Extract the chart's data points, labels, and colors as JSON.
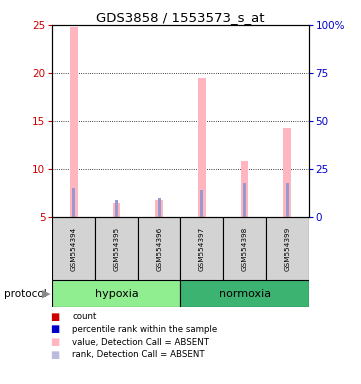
{
  "title": "GDS3858 / 1553573_s_at",
  "samples": [
    "GSM554394",
    "GSM554395",
    "GSM554396",
    "GSM554397",
    "GSM554398",
    "GSM554399"
  ],
  "groups": [
    "hypoxia",
    "hypoxia",
    "hypoxia",
    "normoxia",
    "normoxia",
    "normoxia"
  ],
  "group_labels": [
    "hypoxia",
    "normoxia"
  ],
  "hypoxia_color": "#90EE90",
  "normoxia_color": "#3CB371",
  "pink_values": [
    24.8,
    6.5,
    6.8,
    19.5,
    10.8,
    14.3
  ],
  "blue_values": [
    8.0,
    6.8,
    7.0,
    7.8,
    8.5,
    8.5
  ],
  "y_min": 5,
  "y_max": 25,
  "yticks_left": [
    5,
    10,
    15,
    20,
    25
  ],
  "yticks_right": [
    0,
    25,
    50,
    75,
    100
  ],
  "ytick_labels_right": [
    "0",
    "25",
    "50",
    "75",
    "100%"
  ],
  "pink_bar_width": 0.18,
  "blue_bar_width": 0.07,
  "pink_color": "#FFB6C1",
  "blue_color": "#9999CC",
  "left_tick_color": "#CC0000",
  "right_tick_color": "#0000CC",
  "legend_colors": [
    "#CC0000",
    "#0000CC",
    "#FFB6C1",
    "#BBBBDD"
  ],
  "legend_labels": [
    "count",
    "percentile rank within the sample",
    "value, Detection Call = ABSENT",
    "rank, Detection Call = ABSENT"
  ],
  "protocol_label": "protocol",
  "background_color": "#FFFFFF",
  "sample_box_color": "#D3D3D3"
}
